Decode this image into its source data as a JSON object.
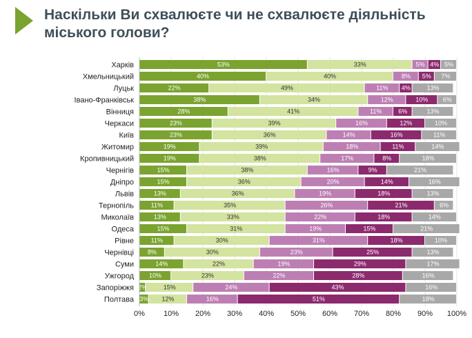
{
  "title": "Наскільки Ви схвалюєте чи не схвалюєте діяльність міського голови?",
  "colors": {
    "accent": "#7ba32f",
    "title": "#3e4f5a",
    "series": [
      "#7ba32f",
      "#d3e3a0",
      "#bd7fb3",
      "#8c2a6e",
      "#a8a8a8"
    ]
  },
  "chart_data": {
    "type": "bar",
    "orientation": "horizontal",
    "stacked": true,
    "categories": [
      "Харків",
      "Хмельницький",
      "Луцьк",
      "Івано-Франківськ",
      "Вінниця",
      "Черкаси",
      "Київ",
      "Житомир",
      "Кропивницький",
      "Чернігів",
      "Дніпро",
      "Львів",
      "Тернопіль",
      "Миколаїв",
      "Одеса",
      "Рівне",
      "Чернівці",
      "Суми",
      "Ужгород",
      "Запоріжжя",
      "Полтава"
    ],
    "series": [
      {
        "values": [
          53,
          40,
          22,
          38,
          28,
          23,
          23,
          19,
          19,
          15,
          15,
          13,
          11,
          13,
          15,
          11,
          8,
          14,
          10,
          2,
          3
        ]
      },
      {
        "values": [
          33,
          40,
          49,
          34,
          41,
          39,
          36,
          39,
          38,
          38,
          36,
          36,
          35,
          33,
          31,
          30,
          30,
          22,
          23,
          15,
          12
        ]
      },
      {
        "values": [
          5,
          8,
          11,
          12,
          11,
          16,
          14,
          18,
          17,
          16,
          20,
          19,
          26,
          22,
          19,
          31,
          23,
          19,
          22,
          24,
          16
        ]
      },
      {
        "values": [
          4,
          5,
          4,
          10,
          6,
          12,
          16,
          11,
          8,
          9,
          14,
          18,
          21,
          18,
          15,
          18,
          25,
          29,
          28,
          43,
          51
        ]
      },
      {
        "values": [
          5,
          7,
          13,
          6,
          13,
          10,
          11,
          14,
          18,
          21,
          16,
          13,
          6,
          14,
          21,
          10,
          13,
          17,
          16,
          16,
          18
        ]
      }
    ],
    "xlim": [
      0,
      100
    ],
    "x_ticks": [
      "0%",
      "10%",
      "20%",
      "30%",
      "40%",
      "50%",
      "60%",
      "70%",
      "80%",
      "90%",
      "100%"
    ],
    "value_suffix": "%",
    "grid": true
  }
}
